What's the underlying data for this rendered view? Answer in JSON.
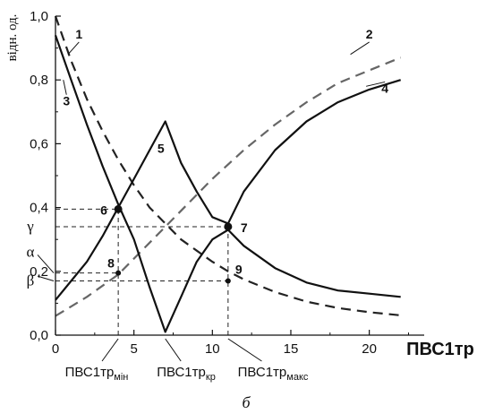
{
  "chart_data": {
    "type": "line",
    "ylabel": "відн. од.",
    "xlabel": "ПВС1тр",
    "caption": "б",
    "xlim": [
      0,
      23.5
    ],
    "ylim": [
      0,
      1.0
    ],
    "x_ticks": [
      0,
      5,
      10,
      15,
      20
    ],
    "x_tick_labels": [
      "0",
      "5",
      "10",
      "15",
      "20"
    ],
    "y_ticks": [
      0,
      0.2,
      0.4,
      0.6,
      0.8,
      1.0
    ],
    "y_tick_labels": [
      "0,0",
      "0,2",
      "0,4",
      "0,6",
      "0,8",
      "1,0"
    ],
    "series": [
      {
        "name": "1",
        "style": "dashed",
        "color": "#222222",
        "x": [
          0,
          1,
          2,
          3,
          4,
          5,
          6,
          7,
          8,
          9,
          10,
          11,
          12,
          14,
          16,
          18,
          20,
          22
        ],
        "y": [
          1.0,
          0.86,
          0.74,
          0.64,
          0.55,
          0.47,
          0.4,
          0.35,
          0.3,
          0.265,
          0.23,
          0.2,
          0.175,
          0.135,
          0.105,
          0.085,
          0.072,
          0.062
        ]
      },
      {
        "name": "2",
        "style": "dashed",
        "color": "#666666",
        "x": [
          0,
          2,
          4,
          6,
          8,
          10,
          12,
          14,
          16,
          18,
          20,
          22
        ],
        "y": [
          0.06,
          0.12,
          0.19,
          0.29,
          0.39,
          0.49,
          0.58,
          0.66,
          0.73,
          0.79,
          0.83,
          0.87
        ]
      },
      {
        "name": "3",
        "style": "solid",
        "color": "#111111",
        "x": [
          0,
          1,
          2,
          3,
          4,
          5,
          6,
          7,
          8,
          9,
          10,
          11,
          12,
          14,
          16,
          18,
          20,
          22
        ],
        "y": [
          0.94,
          0.8,
          0.66,
          0.53,
          0.41,
          0.3,
          0.15,
          0.01,
          0.12,
          0.23,
          0.3,
          0.33,
          0.28,
          0.21,
          0.165,
          0.14,
          0.13,
          0.12
        ]
      },
      {
        "name": "4",
        "style": "solid",
        "color": "#111111",
        "x": [
          0,
          1,
          2,
          3,
          4,
          5,
          6,
          7,
          8,
          9,
          10,
          11,
          12,
          14,
          16,
          18,
          20,
          22
        ],
        "y": [
          0.11,
          0.17,
          0.23,
          0.31,
          0.4,
          0.49,
          0.58,
          0.67,
          0.54,
          0.45,
          0.37,
          0.35,
          0.45,
          0.58,
          0.67,
          0.73,
          0.77,
          0.8
        ]
      }
    ],
    "points": [
      {
        "label": "6",
        "x": 4.0,
        "y": 0.395,
        "size": "large"
      },
      {
        "label": "7",
        "x": 11.0,
        "y": 0.34,
        "size": "large"
      },
      {
        "label": "8",
        "x": 4.0,
        "y": 0.195,
        "size": "small"
      },
      {
        "label": "9",
        "x": 11.0,
        "y": 0.17,
        "size": "small"
      }
    ],
    "peak_label": {
      "label": "5",
      "x": 7.0,
      "y": 0.67
    },
    "series_labels": [
      {
        "label": "1",
        "x": 1.5,
        "y": 0.93
      },
      {
        "label": "2",
        "x": 20.0,
        "y": 0.93
      },
      {
        "label": "3",
        "x": 0.7,
        "y": 0.72
      },
      {
        "label": "4",
        "x": 21.0,
        "y": 0.76
      }
    ],
    "greek_labels": [
      {
        "label": "γ",
        "y": 0.34
      },
      {
        "label": "α",
        "y": 0.26
      },
      {
        "label": "β",
        "y": 0.17
      }
    ],
    "guide_lines": [
      {
        "from": [
          0,
          0.34
        ],
        "to": [
          11.0,
          0.34
        ]
      },
      {
        "from": [
          0,
          0.395
        ],
        "to": [
          4.0,
          0.395
        ]
      },
      {
        "from": [
          0,
          0.195
        ],
        "to": [
          4.0,
          0.195
        ]
      },
      {
        "from": [
          0,
          0.17
        ],
        "to": [
          11.0,
          0.17
        ]
      },
      {
        "from": [
          4.0,
          0
        ],
        "to": [
          4.0,
          0.395
        ]
      },
      {
        "from": [
          11.0,
          0
        ],
        "to": [
          11.0,
          0.34
        ]
      }
    ],
    "x_annotations": [
      {
        "main": "ПВС1тр",
        "sub": "мін",
        "x": 4.0
      },
      {
        "main": "ПВС1тр",
        "sub": "кр",
        "x": 7.0
      },
      {
        "main": "ПВС1тр",
        "sub": "макс",
        "x": 11.0
      }
    ]
  }
}
